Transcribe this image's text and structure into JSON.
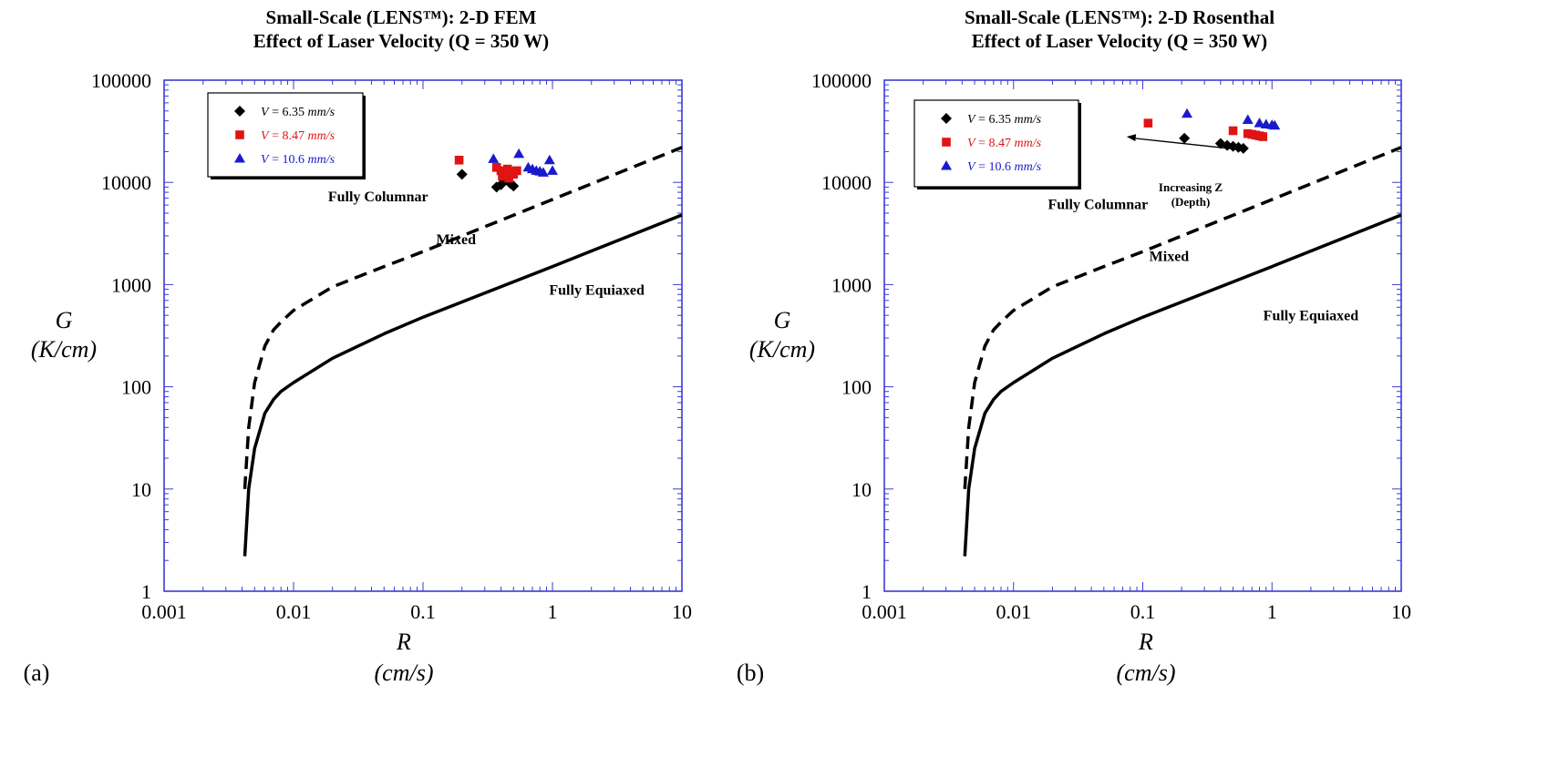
{
  "chart_data": [
    {
      "type": "scatter",
      "panel_label": "(a)",
      "title": "Small-Scale (LENS™): 2-D FEM",
      "subtitle": "Effect of Laser Velocity (Q = 350 W)",
      "xlabel": "R",
      "xunit": "(cm/s)",
      "ylabel": "G",
      "yunit": "(K/cm)",
      "xscale": "log",
      "yscale": "log",
      "xlim": [
        0.001,
        10
      ],
      "ylim": [
        1,
        100000
      ],
      "xticks": [
        "0.001",
        "0.01",
        "0.1",
        "1",
        "10"
      ],
      "yticks": [
        "1",
        "10",
        "100",
        "1000",
        "10000",
        "100000"
      ],
      "legend_position": "top-left",
      "regions": [
        {
          "label": "Fully Columnar",
          "x": 0.045,
          "y": 6500
        },
        {
          "label": "Mixed",
          "x": 0.18,
          "y": 2500
        },
        {
          "label": "Fully Equiaxed",
          "x": 2.2,
          "y": 800
        }
      ],
      "boundaries": [
        {
          "name": "columnar-to-mixed",
          "style": "dashed",
          "x": [
            0.0042,
            0.0045,
            0.005,
            0.006,
            0.007,
            0.008,
            0.01,
            0.02,
            0.05,
            0.1,
            1,
            10
          ],
          "y": [
            10,
            40,
            110,
            250,
            360,
            430,
            560,
            950,
            1500,
            2100,
            6800,
            22000
          ]
        },
        {
          "name": "mixed-to-equiaxed",
          "style": "solid",
          "x": [
            0.0042,
            0.0045,
            0.005,
            0.006,
            0.007,
            0.008,
            0.01,
            0.02,
            0.05,
            0.1,
            1,
            10
          ],
          "y": [
            2.2,
            10,
            25,
            55,
            75,
            90,
            110,
            190,
            330,
            480,
            1500,
            4800
          ]
        }
      ],
      "series": [
        {
          "name": "V = 6.35 mm/s",
          "name_value": "V = 6.35",
          "name_unit": "mm/s",
          "color": "#000000",
          "marker": "diamond",
          "x": [
            0.2,
            0.37,
            0.4,
            0.43,
            0.47,
            0.5
          ],
          "y": [
            12000,
            9000,
            9500,
            10500,
            9800,
            9200
          ]
        },
        {
          "name": "V = 8.47 mm/s",
          "name_value": "V = 8.47",
          "name_unit": "mm/s",
          "color": "#e01414",
          "marker": "square",
          "x": [
            0.19,
            0.37,
            0.4,
            0.42,
            0.45,
            0.48,
            0.5,
            0.53,
            0.41,
            0.46
          ],
          "y": [
            16500,
            14000,
            13000,
            12500,
            13500,
            12800,
            12000,
            13000,
            11500,
            11000
          ]
        },
        {
          "name": "V = 10.6 mm/s",
          "name_value": "V = 10.6",
          "name_unit": "mm/s",
          "color": "#1a1acc",
          "marker": "triangle",
          "x": [
            0.35,
            0.55,
            0.65,
            0.7,
            0.75,
            0.8,
            0.85,
            0.95,
            1.0
          ],
          "y": [
            17000,
            19000,
            14000,
            13500,
            13000,
            12800,
            12500,
            16500,
            13000
          ]
        }
      ]
    },
    {
      "type": "scatter",
      "panel_label": "(b)",
      "title": "Small-Scale (LENS™): 2-D Rosenthal",
      "subtitle": "Effect of Laser Velocity (Q = 350 W)",
      "xlabel": "R",
      "xunit": "(cm/s)",
      "ylabel": "G",
      "yunit": "(K/cm)",
      "xscale": "log",
      "yscale": "log",
      "xlim": [
        0.001,
        10
      ],
      "ylim": [
        1,
        100000
      ],
      "xticks": [
        "0.001",
        "0.01",
        "0.1",
        "1",
        "10"
      ],
      "yticks": [
        "1",
        "10",
        "100",
        "1000",
        "10000",
        "100000"
      ],
      "legend_position": "top-left",
      "regions": [
        {
          "label": "Fully Columnar",
          "x": 0.045,
          "y": 5500
        },
        {
          "label": "Mixed",
          "x": 0.16,
          "y": 1700
        },
        {
          "label": "Fully Equiaxed",
          "x": 2.0,
          "y": 450
        }
      ],
      "annotation": {
        "line1": "Increasing Z",
        "line2": "(Depth)",
        "arrow_from": [
          0.55,
          21000
        ],
        "arrow_to": [
          0.075,
          28000
        ]
      },
      "boundaries": [
        {
          "name": "columnar-to-mixed",
          "style": "dashed",
          "x": [
            0.0042,
            0.0045,
            0.005,
            0.006,
            0.007,
            0.008,
            0.01,
            0.02,
            0.05,
            0.1,
            1,
            10
          ],
          "y": [
            10,
            40,
            110,
            250,
            360,
            430,
            560,
            950,
            1500,
            2100,
            6800,
            22000
          ]
        },
        {
          "name": "mixed-to-equiaxed",
          "style": "solid",
          "x": [
            0.0042,
            0.0045,
            0.005,
            0.006,
            0.007,
            0.008,
            0.01,
            0.02,
            0.05,
            0.1,
            1,
            10
          ],
          "y": [
            2.2,
            10,
            25,
            55,
            75,
            90,
            110,
            190,
            330,
            480,
            1500,
            4800
          ]
        }
      ],
      "series": [
        {
          "name": "V = 6.35 mm/s",
          "name_value": "V = 6.35",
          "name_unit": "mm/s",
          "color": "#000000",
          "marker": "diamond",
          "x": [
            0.21,
            0.4,
            0.45,
            0.5,
            0.55,
            0.6
          ],
          "y": [
            27000,
            24000,
            23000,
            22500,
            22000,
            21500
          ]
        },
        {
          "name": "V = 8.47 mm/s",
          "name_value": "V = 8.47",
          "name_unit": "mm/s",
          "color": "#e01414",
          "marker": "square",
          "x": [
            0.11,
            0.5,
            0.65,
            0.7,
            0.75,
            0.8,
            0.85
          ],
          "y": [
            38000,
            32000,
            30000,
            29500,
            29000,
            28500,
            28000
          ]
        },
        {
          "name": "V = 10.6 mm/s",
          "name_value": "V = 10.6",
          "name_unit": "mm/s",
          "color": "#1a1acc",
          "marker": "triangle",
          "x": [
            0.22,
            0.65,
            0.8,
            0.9,
            1.0,
            1.05
          ],
          "y": [
            47000,
            41000,
            38000,
            37000,
            36500,
            36000
          ]
        }
      ]
    }
  ]
}
